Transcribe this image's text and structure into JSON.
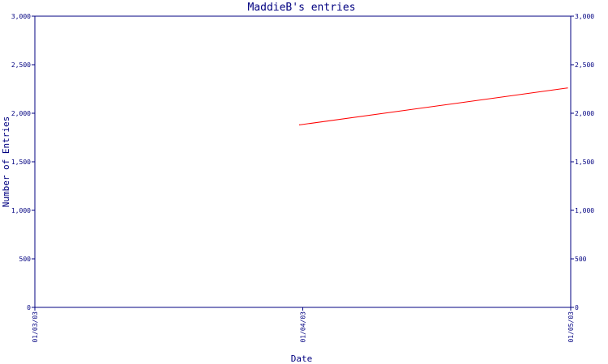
{
  "chart_data": {
    "type": "line",
    "title": "MaddieB's entries",
    "xlabel": "Date",
    "ylabel": "Number of Entries",
    "x_categories": [
      "01/03/03",
      "01/04/03",
      "01/05/03"
    ],
    "ylim": [
      0,
      3000
    ],
    "y_ticks": [
      0,
      500,
      1000,
      1500,
      2000,
      2500,
      3000
    ],
    "y_tick_labels": [
      "0",
      "500",
      "1,000",
      "1,500",
      "2,000",
      "2,500",
      "3,000"
    ],
    "y_axis_right": true,
    "grid": false,
    "series": [
      {
        "points": [
          {
            "x": "01/04/03",
            "y": 1880
          },
          {
            "x": "01/05/03",
            "y": 2260
          }
        ]
      }
    ],
    "colors": {
      "axis": "#000080",
      "line": "#ff0000",
      "background": "#ffffff"
    }
  }
}
